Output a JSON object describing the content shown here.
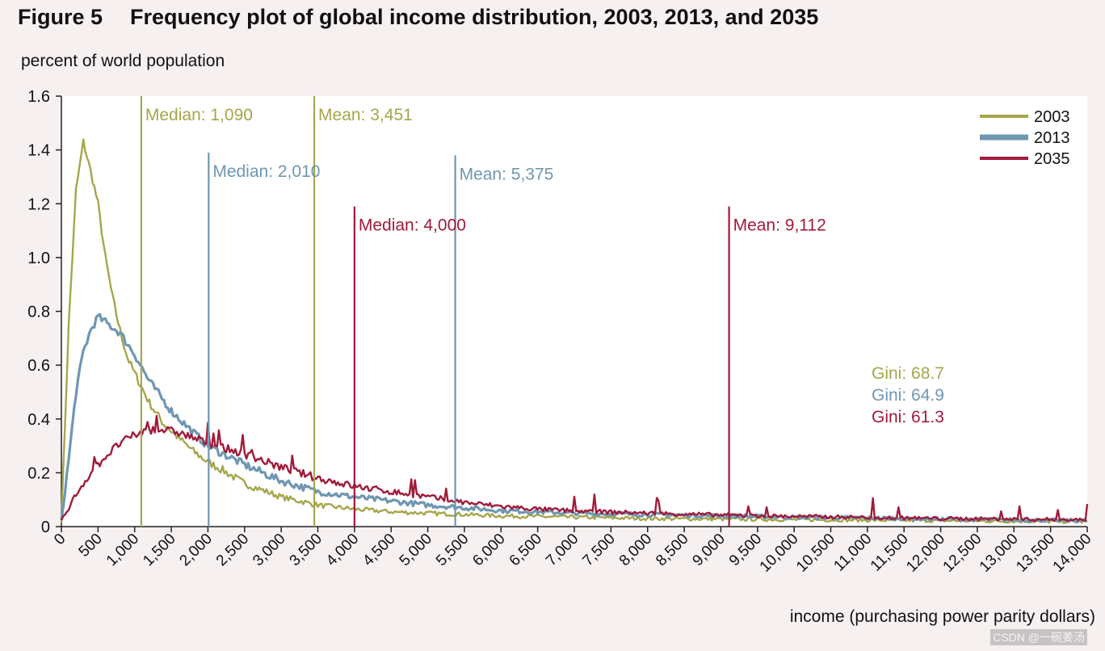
{
  "figure": {
    "label": "Figure 5",
    "title": "Frequency plot of global income distribution, 2003, 2013, and 2035"
  },
  "watermark": "CSDN @一碗姜汤",
  "colors": {
    "y2003": "#a6a64c",
    "y2013": "#6f97b2",
    "y2035": "#a01b3a"
  },
  "chart_data": {
    "type": "line",
    "title": "Frequency plot of global income distribution, 2003, 2013, and 2035",
    "xlabel": "income (purchasing power parity dollars)",
    "ylabel": "percent of world population",
    "xlim": [
      0,
      14000
    ],
    "ylim": [
      0,
      1.6
    ],
    "x_ticks": [
      "0",
      "500",
      "1,000",
      "1,500",
      "2,000",
      "2,500",
      "3,000",
      "3,500",
      "4,000",
      "4,500",
      "5,000",
      "5,500",
      "6,000",
      "6,500",
      "7,000",
      "7,500",
      "8,000",
      "8,500",
      "9,000",
      "9,500",
      "10,000",
      "10,500",
      "11,000",
      "11,500",
      "12,000",
      "12,500",
      "13,000",
      "13,500",
      "14,000"
    ],
    "x_tick_values": [
      0,
      500,
      1000,
      1500,
      2000,
      2500,
      3000,
      3500,
      4000,
      4500,
      5000,
      5500,
      6000,
      6500,
      7000,
      7500,
      8000,
      8500,
      9000,
      9500,
      10000,
      10500,
      11000,
      11500,
      12000,
      12500,
      13000,
      13500,
      14000
    ],
    "y_ticks": [
      "0",
      "0.2",
      "0.4",
      "0.6",
      "0.8",
      "1.0",
      "1.2",
      "1.4",
      "1.6"
    ],
    "y_tick_values": [
      0,
      0.2,
      0.4,
      0.6,
      0.8,
      1.0,
      1.2,
      1.4,
      1.6
    ],
    "legend_position": "top-right",
    "series": [
      {
        "name": "2003",
        "color": "#a6a64c",
        "x": [
          0,
          100,
          200,
          300,
          400,
          500,
          600,
          700,
          800,
          900,
          1000,
          1200,
          1400,
          1600,
          1800,
          2000,
          2200,
          2500,
          3000,
          3500,
          4000,
          4500,
          5000,
          6000,
          7000,
          8000,
          9000,
          10000,
          11000,
          12000,
          13000,
          14000
        ],
        "y": [
          0.02,
          0.75,
          1.25,
          1.43,
          1.32,
          1.2,
          1.0,
          0.85,
          0.73,
          0.63,
          0.57,
          0.46,
          0.38,
          0.33,
          0.28,
          0.24,
          0.21,
          0.16,
          0.11,
          0.08,
          0.065,
          0.055,
          0.05,
          0.04,
          0.035,
          0.03,
          0.028,
          0.026,
          0.024,
          0.022,
          0.02,
          0.018
        ]
      },
      {
        "name": "2013",
        "color": "#6f97b2",
        "x": [
          0,
          100,
          200,
          300,
          400,
          500,
          600,
          700,
          800,
          1000,
          1200,
          1500,
          1800,
          2000,
          2500,
          3000,
          3500,
          4000,
          4500,
          5000,
          6000,
          7000,
          8000,
          9000,
          10000,
          11000,
          12000,
          13000,
          14000
        ],
        "y": [
          0.02,
          0.25,
          0.5,
          0.65,
          0.73,
          0.78,
          0.76,
          0.74,
          0.72,
          0.64,
          0.54,
          0.43,
          0.35,
          0.3,
          0.23,
          0.17,
          0.13,
          0.11,
          0.095,
          0.08,
          0.06,
          0.05,
          0.045,
          0.04,
          0.035,
          0.032,
          0.028,
          0.025,
          0.022
        ]
      },
      {
        "name": "2035",
        "color": "#a01b3a",
        "x": [
          0,
          200,
          400,
          600,
          800,
          1000,
          1200,
          1400,
          1600,
          1800,
          2000,
          2500,
          3000,
          3500,
          4000,
          4500,
          5000,
          5500,
          6000,
          6500,
          7000,
          8000,
          9000,
          10000,
          11000,
          12000,
          13000,
          14000
        ],
        "y": [
          0.02,
          0.12,
          0.2,
          0.26,
          0.31,
          0.34,
          0.36,
          0.36,
          0.35,
          0.33,
          0.31,
          0.27,
          0.22,
          0.18,
          0.15,
          0.13,
          0.11,
          0.09,
          0.075,
          0.065,
          0.058,
          0.05,
          0.043,
          0.038,
          0.034,
          0.03,
          0.028,
          0.025
        ]
      }
    ],
    "markers": [
      {
        "label": "Median: 1,090",
        "value": 1090,
        "height": 1.6,
        "series": "2003"
      },
      {
        "label": "Mean: 3,451",
        "value": 3451,
        "height": 1.6,
        "series": "2003"
      },
      {
        "label": "Median: 2,010",
        "value": 2010,
        "height": 1.39,
        "series": "2013"
      },
      {
        "label": "Mean: 5,375",
        "value": 5375,
        "height": 1.38,
        "series": "2013"
      },
      {
        "label": "Median: 4,000",
        "value": 4000,
        "height": 1.19,
        "series": "2035"
      },
      {
        "label": "Mean: 9,112",
        "value": 9112,
        "height": 1.19,
        "series": "2035"
      }
    ],
    "annotations": [
      {
        "text": "Gini: 68.7",
        "series": "2003"
      },
      {
        "text": "Gini: 64.9",
        "series": "2013"
      },
      {
        "text": "Gini: 61.3",
        "series": "2035"
      }
    ]
  }
}
